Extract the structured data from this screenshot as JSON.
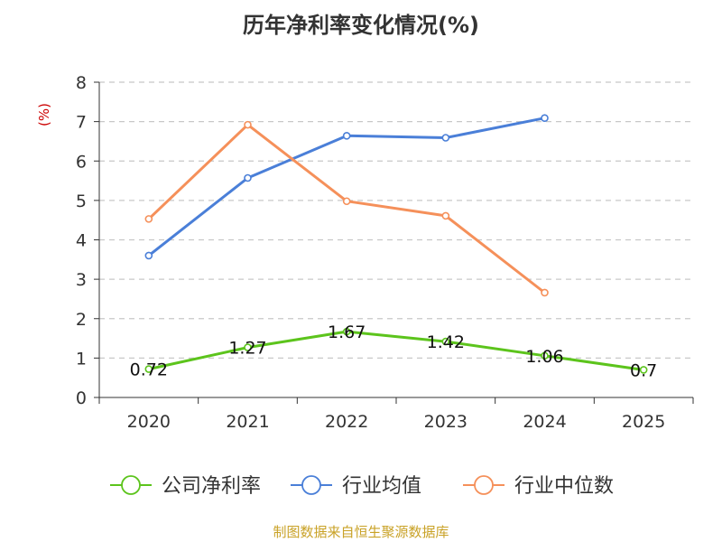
{
  "chart_data": {
    "type": "line",
    "title": "历年净利率变化情况(%)",
    "ylabel": "(%)",
    "xlabel": "",
    "ylim": [
      0,
      8
    ],
    "yticks": [
      0,
      1,
      2,
      3,
      4,
      5,
      6,
      7,
      8
    ],
    "categories": [
      "2020",
      "2021",
      "2022",
      "2023",
      "2024",
      "2025"
    ],
    "grid": true,
    "legend_position": "bottom",
    "series": [
      {
        "name": "公司净利率",
        "color": "#5cc41c",
        "values": [
          0.72,
          1.27,
          1.67,
          1.42,
          1.06,
          0.7
        ],
        "labels": [
          "0.72",
          "1.27",
          "1.67",
          "1.42",
          "1.06",
          "0.7"
        ],
        "show_labels": true
      },
      {
        "name": "行业均值",
        "color": "#4a7fd8",
        "values": [
          3.6,
          5.57,
          6.64,
          6.59,
          7.09,
          null
        ],
        "show_labels": false
      },
      {
        "name": "行业中位数",
        "color": "#f5905a",
        "values": [
          4.53,
          6.92,
          4.98,
          4.61,
          2.66,
          null
        ],
        "show_labels": false
      }
    ],
    "source": "制图数据来自恒生聚源数据库"
  }
}
